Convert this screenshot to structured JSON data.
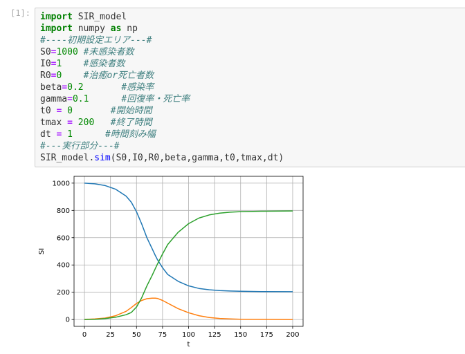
{
  "cell": {
    "prompt": "[1]:",
    "code_lines": [
      [
        {
          "t": "import",
          "c": "kw"
        },
        {
          "t": " SIR_model",
          "c": ""
        }
      ],
      [
        {
          "t": "import",
          "c": "kw"
        },
        {
          "t": " numpy ",
          "c": ""
        },
        {
          "t": "as",
          "c": "kw"
        },
        {
          "t": " np",
          "c": ""
        }
      ],
      [
        {
          "t": "#----初期設定エリア---#",
          "c": "cm"
        }
      ],
      [
        {
          "t": "S0",
          "c": ""
        },
        {
          "t": "=",
          "c": "op"
        },
        {
          "t": "1000",
          "c": "num"
        },
        {
          "t": " ",
          "c": ""
        },
        {
          "t": "#未感染者数",
          "c": "cm"
        }
      ],
      [
        {
          "t": "I0",
          "c": ""
        },
        {
          "t": "=",
          "c": "op"
        },
        {
          "t": "1",
          "c": "num"
        },
        {
          "t": "    ",
          "c": ""
        },
        {
          "t": "#感染者数",
          "c": "cm"
        }
      ],
      [
        {
          "t": "R0",
          "c": ""
        },
        {
          "t": "=",
          "c": "op"
        },
        {
          "t": "0",
          "c": "num"
        },
        {
          "t": "    ",
          "c": ""
        },
        {
          "t": "#治癒or死亡者数",
          "c": "cm"
        }
      ],
      [
        {
          "t": "beta",
          "c": ""
        },
        {
          "t": "=",
          "c": "op"
        },
        {
          "t": "0.2",
          "c": "num"
        },
        {
          "t": "       ",
          "c": ""
        },
        {
          "t": "#感染率",
          "c": "cm"
        }
      ],
      [
        {
          "t": "gamma",
          "c": ""
        },
        {
          "t": "=",
          "c": "op"
        },
        {
          "t": "0.1",
          "c": "num"
        },
        {
          "t": "      ",
          "c": ""
        },
        {
          "t": "#回復率・死亡率",
          "c": "cm"
        }
      ],
      [
        {
          "t": "t0 ",
          "c": ""
        },
        {
          "t": "=",
          "c": "op"
        },
        {
          "t": " ",
          "c": ""
        },
        {
          "t": "0",
          "c": "num"
        },
        {
          "t": "       ",
          "c": ""
        },
        {
          "t": "#開始時間",
          "c": "cm"
        }
      ],
      [
        {
          "t": "tmax ",
          "c": ""
        },
        {
          "t": "=",
          "c": "op"
        },
        {
          "t": " ",
          "c": ""
        },
        {
          "t": "200",
          "c": "num"
        },
        {
          "t": "   ",
          "c": ""
        },
        {
          "t": "#終了時間",
          "c": "cm"
        }
      ],
      [
        {
          "t": "dt ",
          "c": ""
        },
        {
          "t": "=",
          "c": "op"
        },
        {
          "t": " ",
          "c": ""
        },
        {
          "t": "1",
          "c": "num"
        },
        {
          "t": "      ",
          "c": ""
        },
        {
          "t": "#時間刻み幅",
          "c": "cm"
        }
      ],
      [
        {
          "t": "#---実行部分---#",
          "c": "cm"
        }
      ],
      [
        {
          "t": "SIR_model.",
          "c": ""
        },
        {
          "t": "sim",
          "c": "fn"
        },
        {
          "t": "(S0,I0,R0,beta,gamma,t0,tmax,dt)",
          "c": ""
        }
      ]
    ]
  },
  "chart_data": {
    "type": "line",
    "xlabel": "t",
    "ylabel": "SI",
    "xlim": [
      -10,
      210
    ],
    "ylim": [
      -50,
      1050
    ],
    "grid": true,
    "xticks": [
      0,
      25,
      50,
      75,
      100,
      125,
      150,
      175,
      200
    ],
    "yticks": [
      0,
      200,
      400,
      600,
      800,
      1000
    ],
    "x": [
      0,
      10,
      20,
      30,
      40,
      45,
      50,
      55,
      60,
      65,
      68,
      70,
      75,
      80,
      90,
      100,
      110,
      120,
      130,
      140,
      150,
      170,
      200
    ],
    "series": [
      {
        "color": "#1f77b4",
        "values": [
          1000,
          995,
          982,
          955,
          905,
          860,
          790,
          700,
          600,
          520,
          470,
          440,
          380,
          330,
          280,
          247,
          228,
          218,
          212,
          209,
          207,
          205,
          204
        ]
      },
      {
        "color": "#ff7f0e",
        "values": [
          1,
          4,
          11,
          28,
          60,
          88,
          118,
          140,
          153,
          157,
          157,
          155,
          140,
          120,
          80,
          50,
          28,
          15,
          8,
          4,
          2,
          1,
          0
        ]
      },
      {
        "color": "#2ca02c",
        "values": [
          0,
          1,
          7,
          17,
          35,
          52,
          92,
          160,
          247,
          323,
          373,
          405,
          480,
          550,
          640,
          703,
          744,
          767,
          780,
          787,
          791,
          794,
          796
        ]
      }
    ]
  }
}
